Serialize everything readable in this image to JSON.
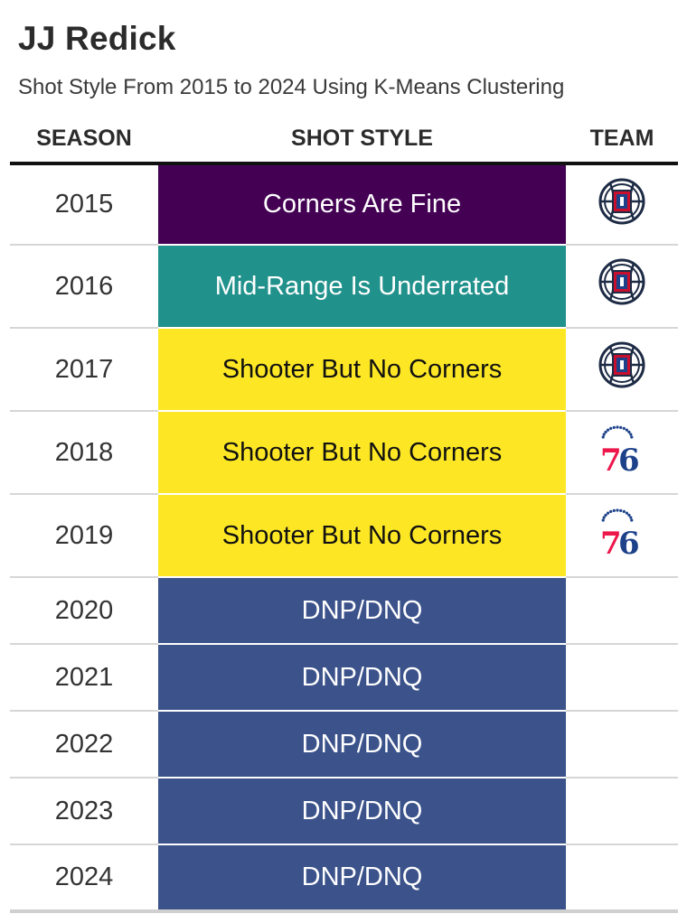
{
  "title": "JJ Redick",
  "subtitle": "Shot Style From 2015 to 2024 Using K-Means Clustering",
  "columns": {
    "season": "SEASON",
    "style": "SHOT STYLE",
    "team": "TEAM"
  },
  "chart_data": {
    "type": "table",
    "columns": [
      "SEASON",
      "SHOT STYLE",
      "TEAM"
    ],
    "rows": [
      {
        "season": "2015",
        "style": "Corners Are Fine",
        "team_logo": "clippers-logo-icon",
        "color": "#440154",
        "text_color": "#ffffff"
      },
      {
        "season": "2016",
        "style": "Mid-Range Is Underrated",
        "team_logo": "clippers-logo-icon",
        "color": "#21918c",
        "text_color": "#ffffff"
      },
      {
        "season": "2017",
        "style": "Shooter But No Corners",
        "team_logo": "clippers-logo-icon",
        "color": "#fde725",
        "text_color": "#111111"
      },
      {
        "season": "2018",
        "style": "Shooter But No Corners",
        "team_logo": "76ers-logo-icon",
        "color": "#fde725",
        "text_color": "#111111"
      },
      {
        "season": "2019",
        "style": "Shooter But No Corners",
        "team_logo": "76ers-logo-icon",
        "color": "#fde725",
        "text_color": "#111111"
      },
      {
        "season": "2020",
        "style": "DNP/DNQ",
        "team_logo": "",
        "color": "#3b528b",
        "text_color": "#ffffff"
      },
      {
        "season": "2021",
        "style": "DNP/DNQ",
        "team_logo": "",
        "color": "#3b528b",
        "text_color": "#ffffff"
      },
      {
        "season": "2022",
        "style": "DNP/DNQ",
        "team_logo": "",
        "color": "#3b528b",
        "text_color": "#ffffff"
      },
      {
        "season": "2023",
        "style": "DNP/DNQ",
        "team_logo": "",
        "color": "#3b528b",
        "text_color": "#ffffff"
      },
      {
        "season": "2024",
        "style": "DNP/DNQ",
        "team_logo": "",
        "color": "#3b528b",
        "text_color": "#ffffff"
      }
    ]
  }
}
